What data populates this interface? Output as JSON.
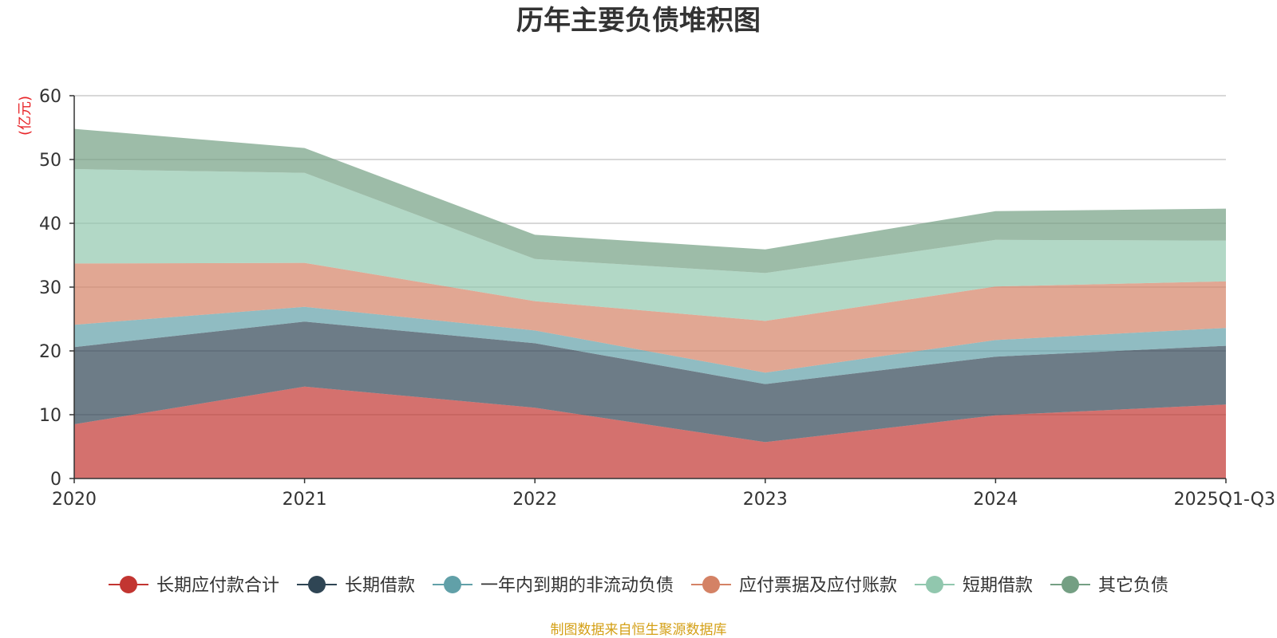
{
  "chart_data": {
    "type": "area",
    "stacked": true,
    "title": "历年主要负债堆积图",
    "y_unit": "(亿元)",
    "categories": [
      "2020",
      "2021",
      "2022",
      "2023",
      "2024",
      "2025Q1-Q3"
    ],
    "ylim": [
      0,
      60
    ],
    "yticks": [
      0,
      10,
      20,
      30,
      40,
      50,
      60
    ],
    "grid": true,
    "legend_position": "bottom",
    "series": [
      {
        "name": "长期应付款合计",
        "color": "#c23531",
        "values": [
          8.5,
          14.4,
          11.1,
          5.7,
          9.9,
          11.6
        ]
      },
      {
        "name": "长期借款",
        "color": "#2f4554",
        "values": [
          12.1,
          10.2,
          10.1,
          9.1,
          9.2,
          9.2
        ]
      },
      {
        "name": "一年内到期的非流动负债",
        "color": "#61a0a8",
        "values": [
          3.5,
          2.3,
          2.0,
          1.8,
          2.6,
          2.8
        ]
      },
      {
        "name": "应付票据及应付账款",
        "color": "#d48265",
        "values": [
          9.6,
          6.9,
          4.6,
          8.1,
          8.4,
          7.3
        ]
      },
      {
        "name": "短期借款",
        "color": "#91c7ae",
        "values": [
          14.8,
          14.1,
          6.6,
          7.5,
          7.3,
          6.4
        ]
      },
      {
        "name": "其它负债",
        "color": "#749f83",
        "values": [
          6.3,
          3.9,
          3.8,
          3.7,
          4.5,
          5.0
        ]
      }
    ],
    "source": "制图数据来自恒生聚源数据库"
  }
}
